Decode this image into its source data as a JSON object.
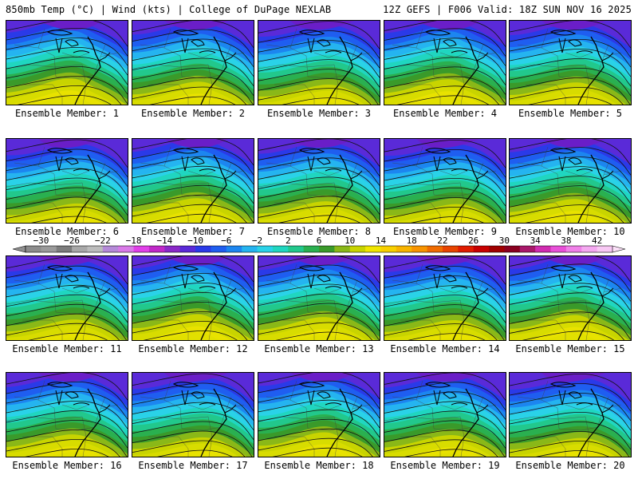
{
  "header": {
    "left": "850mb Temp (°C) | Wind (kts) | College of DuPage NEXLAB",
    "right": "12Z GEFS | F006 Valid: 18Z SUN NOV 16 2025"
  },
  "members": [
    {
      "label": "Ensemble Member: 1"
    },
    {
      "label": "Ensemble Member: 2"
    },
    {
      "label": "Ensemble Member: 3"
    },
    {
      "label": "Ensemble Member: 4"
    },
    {
      "label": "Ensemble Member: 5"
    },
    {
      "label": "Ensemble Member: 6"
    },
    {
      "label": "Ensemble Member: 7"
    },
    {
      "label": "Ensemble Member: 8"
    },
    {
      "label": "Ensemble Member: 9"
    },
    {
      "label": "Ensemble Member: 10"
    },
    {
      "label": "Ensemble Member: 11"
    },
    {
      "label": "Ensemble Member: 12"
    },
    {
      "label": "Ensemble Member: 13"
    },
    {
      "label": "Ensemble Member: 14"
    },
    {
      "label": "Ensemble Member: 15"
    },
    {
      "label": "Ensemble Member: 16"
    },
    {
      "label": "Ensemble Member: 17"
    },
    {
      "label": "Ensemble Member: 18"
    },
    {
      "label": "Ensemble Member: 19"
    },
    {
      "label": "Ensemble Member: 20"
    }
  ],
  "colorbar": {
    "tick_labels": [
      "−30",
      "−26",
      "−22",
      "−18",
      "−14",
      "−10",
      "−6",
      "−2",
      "2",
      "6",
      "10",
      "14",
      "18",
      "22",
      "26",
      "30",
      "34",
      "38",
      "42"
    ],
    "colors": [
      "#8c8c8c",
      "#9a9a9a",
      "#7c7c7c",
      "#a8a8a8",
      "#bcbcbc",
      "#b58ad8",
      "#d97ae8",
      "#e040e8",
      "#c028c8",
      "#8a28c8",
      "#5a2ad8",
      "#2a3ae8",
      "#1f5ef0",
      "#1c86f0",
      "#25b4f0",
      "#2ad2e8",
      "#20d6c0",
      "#22c88c",
      "#2ab050",
      "#3a9a2a",
      "#8ab818",
      "#c8d400",
      "#f0e600",
      "#f8d000",
      "#f8b400",
      "#f89400",
      "#f06c00",
      "#e84400",
      "#e01c00",
      "#c80000",
      "#a00000",
      "#8a0020",
      "#a8186a",
      "#d02cb0",
      "#e850d8",
      "#f080e8",
      "#f4a8f0",
      "#f8c8f4"
    ]
  }
}
